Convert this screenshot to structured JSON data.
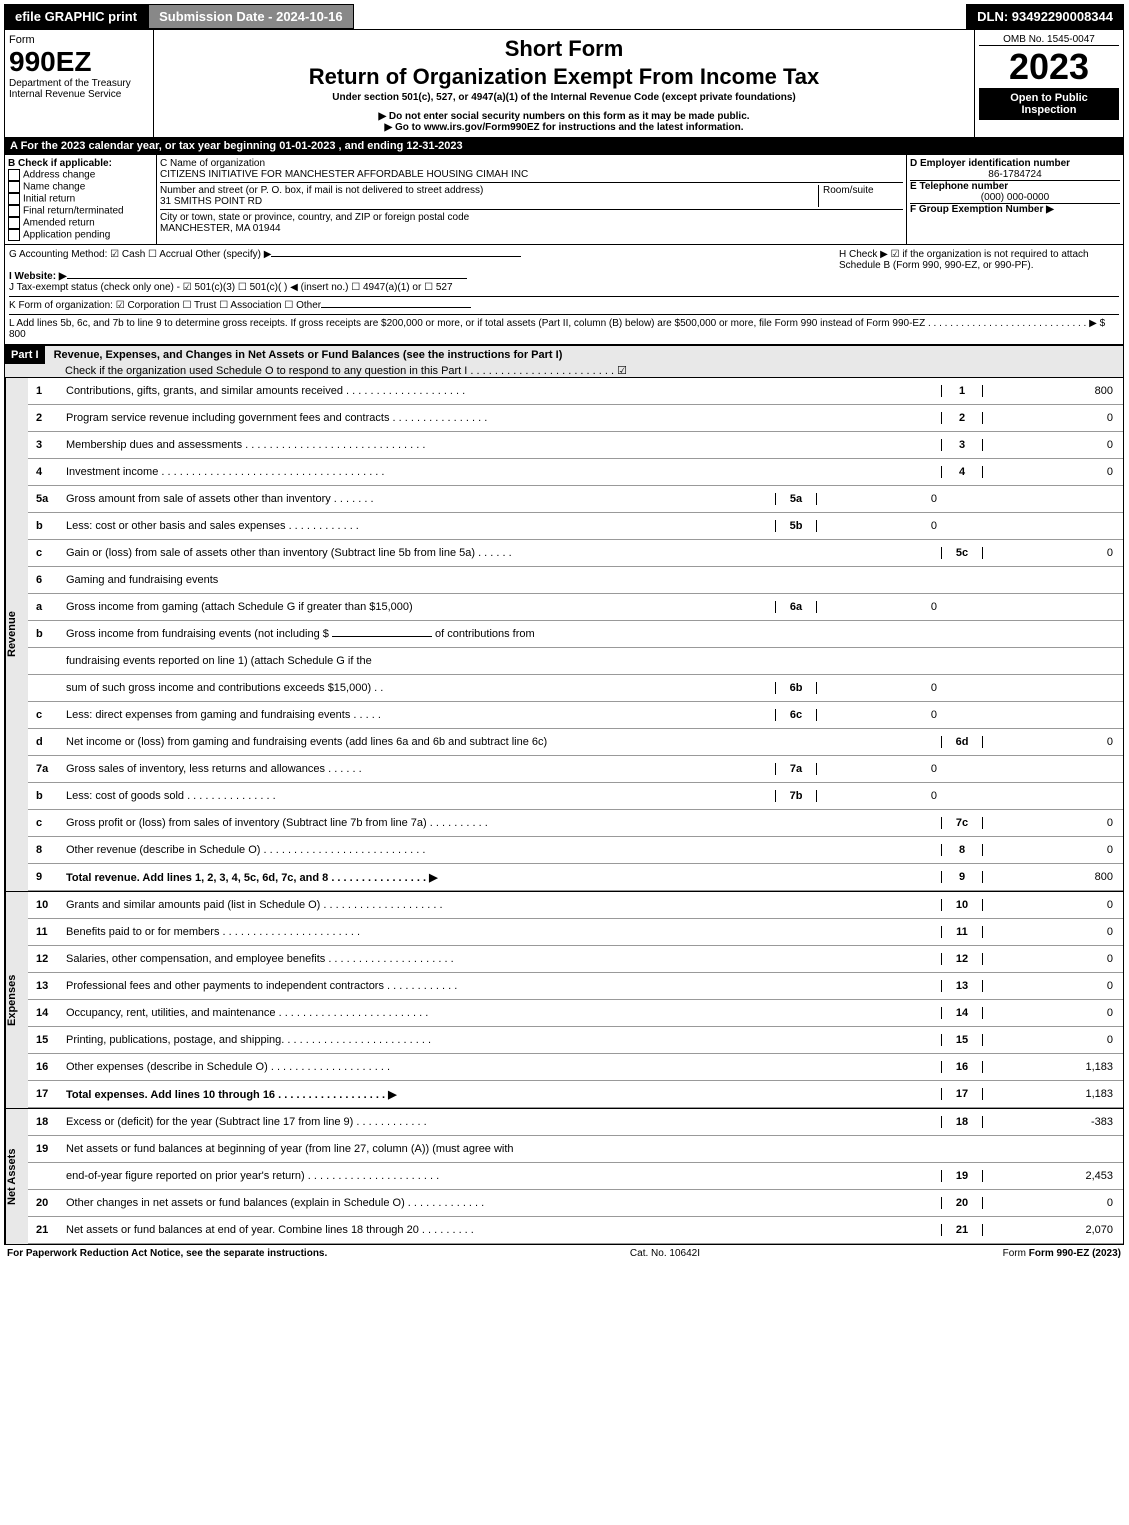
{
  "topbar": {
    "efile": "efile GRAPHIC print",
    "submission": "Submission Date - 2024-10-16",
    "dln": "DLN: 93492290008344"
  },
  "header": {
    "form": "Form",
    "formno": "990EZ",
    "dept": "Department of the Treasury",
    "irs": "Internal Revenue Service",
    "short": "Short Form",
    "title": "Return of Organization Exempt From Income Tax",
    "under": "Under section 501(c), 527, or 4947(a)(1) of the Internal Revenue Code (except private foundations)",
    "note1": "▶ Do not enter social security numbers on this form as it may be made public.",
    "note2": "▶ Go to www.irs.gov/Form990EZ for instructions and the latest information.",
    "omb": "OMB No. 1545-0047",
    "year": "2023",
    "open": "Open to Public Inspection"
  },
  "A": "A  For the 2023 calendar year, or tax year beginning 01-01-2023 , and ending 12-31-2023",
  "B": {
    "label": "B  Check if applicable:",
    "opts": [
      "Address change",
      "Name change",
      "Initial return",
      "Final return/terminated",
      "Amended return",
      "Application pending"
    ]
  },
  "C": {
    "nameLbl": "C Name of organization",
    "name": "CITIZENS INITIATIVE FOR MANCHESTER AFFORDABLE HOUSING CIMAH INC",
    "streetLbl": "Number and street (or P. O. box, if mail is not delivered to street address)",
    "room": "Room/suite",
    "street": "31 SMITHS POINT RD",
    "cityLbl": "City or town, state or province, country, and ZIP or foreign postal code",
    "city": "MANCHESTER, MA  01944"
  },
  "D": {
    "lbl": "D Employer identification number",
    "val": "86-1784724"
  },
  "E": {
    "lbl": "E Telephone number",
    "val": "(000) 000-0000"
  },
  "F": {
    "lbl": "F Group Exemption Number  ▶"
  },
  "G": "G Accounting Method:   ☑ Cash  ☐ Accrual   Other (specify) ▶",
  "H": "H   Check ▶  ☑  if the organization is not required to attach Schedule B (Form 990, 990-EZ, or 990-PF).",
  "I": "I Website: ▶",
  "J": "J Tax-exempt status (check only one) -  ☑ 501(c)(3)  ☐ 501(c)(   ) ◀ (insert no.)  ☐ 4947(a)(1) or  ☐ 527",
  "K": "K Form of organization:   ☑ Corporation   ☐ Trust   ☐ Association   ☐ Other",
  "L": "L Add lines 5b, 6c, and 7b to line 9 to determine gross receipts. If gross receipts are $200,000 or more, or if total assets (Part II, column (B) below) are $500,000 or more, file Form 990 instead of Form 990-EZ  .  .  .  .  .  .  .  .  .  .  .  .  .  .  .  .  .  .  .  .  .  .  .  .  .  .  .  .  .   ▶ $ 800",
  "partI": {
    "tag": "Part I",
    "title": "Revenue, Expenses, and Changes in Net Assets or Fund Balances (see the instructions for Part I)",
    "check": "Check if the organization used Schedule O to respond to any question in this Part I  .  .  .  .  .  .  .  .  .  .  .  .  .  .  .  .  .  .  .  .  .  .  .  .   ☑"
  },
  "revenue": {
    "tab": "Revenue",
    "lines": [
      {
        "n": "1",
        "d": "Contributions, gifts, grants, and similar amounts received  .  .  .  .  .  .  .  .  .  .  .  .  .  .  .  .  .  .  .  .",
        "c": "1",
        "v": "800"
      },
      {
        "n": "2",
        "d": "Program service revenue including government fees and contracts  .  .  .  .  .  .  .  .  .  .  .  .  .  .  .  .",
        "c": "2",
        "v": "0"
      },
      {
        "n": "3",
        "d": "Membership dues and assessments  .  .  .  .  .  .  .  .  .  .  .  .  .  .  .  .  .  .  .  .  .  .  .  .  .  .  .  .  .  .",
        "c": "3",
        "v": "0"
      },
      {
        "n": "4",
        "d": "Investment income  .  .  .  .  .  .  .  .  .  .  .  .  .  .  .  .  .  .  .  .  .  .  .  .  .  .  .  .  .  .  .  .  .  .  .  .  .",
        "c": "4",
        "v": "0"
      }
    ],
    "l5a": {
      "n": "5a",
      "d": "Gross amount from sale of assets other than inventory  .  .  .  .  .  .  .",
      "ic": "5a",
      "iv": "0"
    },
    "l5b": {
      "n": "b",
      "d": "Less: cost or other basis and sales expenses  .  .  .  .  .  .  .  .  .  .  .  .",
      "ic": "5b",
      "iv": "0"
    },
    "l5c": {
      "n": "c",
      "d": "Gain or (loss) from sale of assets other than inventory (Subtract line 5b from line 5a)  .  .  .  .  .  .",
      "c": "5c",
      "v": "0"
    },
    "l6": {
      "n": "6",
      "d": "Gaming and fundraising events"
    },
    "l6a": {
      "n": "a",
      "d": "Gross income from gaming (attach Schedule G if greater than $15,000)",
      "ic": "6a",
      "iv": "0"
    },
    "l6b1": {
      "n": "b",
      "d": "Gross income from fundraising events (not including $",
      "d2": "of contributions from"
    },
    "l6b2": "fundraising events reported on line 1) (attach Schedule G if the",
    "l6b3": {
      "d": "sum of such gross income and contributions exceeds $15,000)   .   .",
      "ic": "6b",
      "iv": "0"
    },
    "l6c": {
      "n": "c",
      "d": "Less: direct expenses from gaming and fundraising events  .  .  .  .  .",
      "ic": "6c",
      "iv": "0"
    },
    "l6d": {
      "n": "d",
      "d": "Net income or (loss) from gaming and fundraising events (add lines 6a and 6b and subtract line 6c)",
      "c": "6d",
      "v": "0"
    },
    "l7a": {
      "n": "7a",
      "d": "Gross sales of inventory, less returns and allowances  .  .  .  .  .  .",
      "ic": "7a",
      "iv": "0"
    },
    "l7b": {
      "n": "b",
      "d": "Less: cost of goods sold        .   .   .   .   .   .   .   .   .   .   .   .   .   .   .",
      "ic": "7b",
      "iv": "0"
    },
    "l7c": {
      "n": "c",
      "d": "Gross profit or (loss) from sales of inventory (Subtract line 7b from line 7a)  .  .  .  .  .  .  .  .  .  .",
      "c": "7c",
      "v": "0"
    },
    "l8": {
      "n": "8",
      "d": "Other revenue (describe in Schedule O)  .  .  .  .  .  .  .  .  .  .  .  .  .  .  .  .  .  .  .  .  .  .  .  .  .  .  .",
      "c": "8",
      "v": "0"
    },
    "l9": {
      "n": "9",
      "d": "Total revenue. Add lines 1, 2, 3, 4, 5c, 6d, 7c, and 8   .   .   .   .   .   .   .   .   .   .   .   .   .   .   .   .  ▶",
      "c": "9",
      "v": "800",
      "bold": true
    }
  },
  "expenses": {
    "tab": "Expenses",
    "lines": [
      {
        "n": "10",
        "d": "Grants and similar amounts paid (list in Schedule O)  .  .  .  .  .  .  .  .  .  .  .  .  .  .  .  .  .  .  .  .",
        "c": "10",
        "v": "0"
      },
      {
        "n": "11",
        "d": "Benefits paid to or for members   .   .   .   .   .   .   .   .   .   .   .   .   .   .   .   .   .   .   .   .   .   .   .",
        "c": "11",
        "v": "0"
      },
      {
        "n": "12",
        "d": "Salaries, other compensation, and employee benefits .  .  .  .  .  .  .  .  .  .  .  .  .  .  .  .  .  .  .  .  .",
        "c": "12",
        "v": "0"
      },
      {
        "n": "13",
        "d": "Professional fees and other payments to independent contractors  .   .   .   .   .   .   .   .   .   .   .   .",
        "c": "13",
        "v": "0"
      },
      {
        "n": "14",
        "d": "Occupancy, rent, utilities, and maintenance .  .  .  .  .  .  .  .  .  .  .  .  .  .  .  .  .  .  .  .  .  .  .  .  .",
        "c": "14",
        "v": "0"
      },
      {
        "n": "15",
        "d": "Printing, publications, postage, and shipping.  .  .  .  .  .  .  .  .  .  .  .  .  .  .  .  .  .  .  .  .  .  .  .  .",
        "c": "15",
        "v": "0"
      },
      {
        "n": "16",
        "d": "Other expenses (describe in Schedule O)    .   .   .   .   .   .   .   .   .   .   .   .   .   .   .   .   .   .   .   .",
        "c": "16",
        "v": "1,183"
      },
      {
        "n": "17",
        "d": "Total expenses. Add lines 10 through 16    .   .   .   .   .   .   .   .   .   .   .   .   .   .   .   .   .   .  ▶",
        "c": "17",
        "v": "1,183",
        "bold": true
      }
    ]
  },
  "netassets": {
    "tab": "Net Assets",
    "lines": [
      {
        "n": "18",
        "d": "Excess or (deficit) for the year (Subtract line 17 from line 9)      .   .   .   .   .   .   .   .   .   .   .   .",
        "c": "18",
        "v": "-383"
      },
      {
        "n": "19",
        "d": "Net assets or fund balances at beginning of year (from line 27, column (A)) (must agree with",
        "multi": true
      },
      {
        "n": "",
        "d": "end-of-year figure reported on prior year's return) .  .  .  .  .  .  .  .  .  .  .  .  .  .  .  .  .  .  .  .  .  .",
        "c": "19",
        "v": "2,453"
      },
      {
        "n": "20",
        "d": "Other changes in net assets or fund balances (explain in Schedule O)  .  .  .  .  .  .  .  .  .  .  .  .  .",
        "c": "20",
        "v": "0"
      },
      {
        "n": "21",
        "d": "Net assets or fund balances at end of year. Combine lines 18 through 20  .   .   .   .   .   .   .   .   .",
        "c": "21",
        "v": "2,070"
      }
    ]
  },
  "footer": {
    "left": "For Paperwork Reduction Act Notice, see the separate instructions.",
    "mid": "Cat. No. 10642I",
    "right": "Form 990-EZ (2023)"
  }
}
